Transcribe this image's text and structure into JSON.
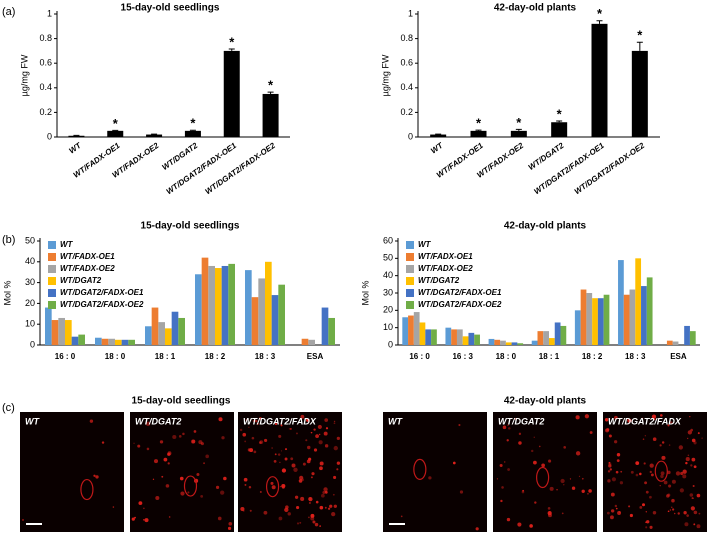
{
  "panel_labels": [
    "(a)",
    "(b)",
    "(c)"
  ],
  "chart_data": [
    {
      "type": "bar",
      "title": "15-day-old seedlings",
      "ylabel": "µg/mg FW",
      "categories": [
        "WT",
        "WT/FADX-OE1",
        "WT/FADX-OE2",
        "WT/DGAT2",
        "WT/DGAT2/FADX-OE1",
        "WT/DGAT2/FADX-OE2"
      ],
      "values": [
        0.01,
        0.05,
        0.02,
        0.05,
        0.7,
        0.35
      ],
      "errors": [
        0.003,
        0.004,
        0.003,
        0.005,
        0.015,
        0.015
      ],
      "significance": [
        null,
        "*",
        null,
        "*",
        "*",
        "*"
      ],
      "color": "#000000",
      "ylim": [
        0,
        1
      ],
      "yticks": [
        0,
        0.2,
        0.4,
        0.6,
        0.8,
        1
      ]
    },
    {
      "type": "bar",
      "title": "42-day-old plants",
      "ylabel": "µg/mg FW",
      "categories": [
        "WT",
        "WT/FADX-OE1",
        "WT/FADX-OE2",
        "WT/DGAT2",
        "WT/DGAT2/FADX-OE1",
        "WT/DGAT2/FADX-OE2"
      ],
      "values": [
        0.02,
        0.05,
        0.05,
        0.12,
        0.92,
        0.7
      ],
      "errors": [
        0.003,
        0.006,
        0.012,
        0.01,
        0.025,
        0.07
      ],
      "significance": [
        null,
        "*",
        "*",
        "*",
        "*",
        "*"
      ],
      "color": "#000000",
      "ylim": [
        0,
        1
      ],
      "yticks": [
        0,
        0.2,
        0.4,
        0.6,
        0.8,
        1
      ]
    },
    {
      "type": "grouped_bar",
      "title": "15-day-old seedlings",
      "ylabel": "Mol %",
      "categories": [
        "16 : 0",
        "18 : 0",
        "18 : 1",
        "18 : 2",
        "18 : 3",
        "ESA"
      ],
      "series": [
        {
          "name": "WT",
          "color": "#5b9bd5",
          "values": [
            18,
            3.5,
            9,
            34,
            36,
            0
          ]
        },
        {
          "name": "WT/FADX-OE1",
          "color": "#ed7d31",
          "values": [
            12,
            3,
            18,
            42,
            23,
            3
          ]
        },
        {
          "name": "WT/FADX-OE2",
          "color": "#a5a5a5",
          "values": [
            13,
            3,
            11,
            38,
            32,
            2.5
          ]
        },
        {
          "name": "WT/DGAT2",
          "color": "#ffc000",
          "values": [
            12,
            2.5,
            8,
            37,
            40,
            0
          ]
        },
        {
          "name": "WT/DGAT2/FADX-OE1",
          "color": "#4472c4",
          "values": [
            4,
            2.5,
            16,
            38,
            24,
            18
          ]
        },
        {
          "name": "WT/DGAT2/FADX-OE2",
          "color": "#70ad47",
          "values": [
            5,
            2.5,
            13,
            39,
            29,
            13
          ]
        }
      ],
      "ylim": [
        0,
        50
      ],
      "yticks": [
        0,
        10,
        20,
        30,
        40,
        50
      ],
      "legend": "upper left"
    },
    {
      "type": "grouped_bar",
      "title": "42-day-old plants",
      "ylabel": "Mol %",
      "categories": [
        "16 : 0",
        "16 : 3",
        "18 : 0",
        "18 : 1",
        "18 : 2",
        "18 : 3",
        "ESA"
      ],
      "series": [
        {
          "name": "WT",
          "color": "#5b9bd5",
          "values": [
            16,
            10,
            3.5,
            2.5,
            20,
            49,
            0
          ]
        },
        {
          "name": "WT/FADX-OE1",
          "color": "#ed7d31",
          "values": [
            17,
            9,
            3,
            8,
            32,
            29,
            2.5
          ]
        },
        {
          "name": "WT/FADX-OE2",
          "color": "#a5a5a5",
          "values": [
            19,
            9,
            2.5,
            8,
            30,
            32,
            2
          ]
        },
        {
          "name": "WT/DGAT2",
          "color": "#ffc000",
          "values": [
            13,
            5,
            1.5,
            4,
            27,
            50,
            0
          ]
        },
        {
          "name": "WT/DGAT2/FADX-OE1",
          "color": "#4472c4",
          "values": [
            9,
            7,
            1.5,
            13,
            27,
            34,
            11
          ]
        },
        {
          "name": "WT/DGAT2/FADX-OE2",
          "color": "#70ad47",
          "values": [
            9,
            6,
            1,
            11,
            29,
            39,
            8
          ]
        }
      ],
      "ylim": [
        0,
        60
      ],
      "yticks": [
        0,
        10,
        20,
        30,
        40,
        50,
        60
      ],
      "legend": "upper left"
    }
  ],
  "micrographs": [
    {
      "title": "15-day-old seedlings",
      "panels": [
        "WT",
        "WT/DGAT2",
        "WT/DGAT2/FADX"
      ]
    },
    {
      "title": "42-day-old plants",
      "panels": [
        "WT",
        "WT/DGAT2",
        "WT/DGAT2/FADX"
      ]
    }
  ]
}
